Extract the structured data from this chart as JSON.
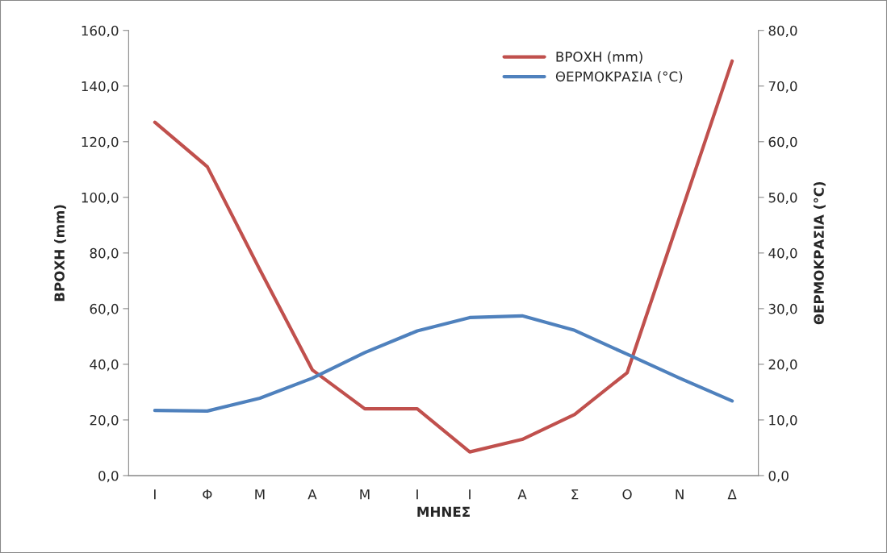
{
  "chart_data": {
    "type": "line",
    "xlabel": "ΜΗΝΕΣ",
    "ylabel": "ΒΡΟΧΗ (mm)",
    "y2label": "ΘΕΡΜΟΚΡΑΣΙΑ (°C)",
    "categories": [
      "Ι",
      "Φ",
      "Μ",
      "Α",
      "Μ",
      "Ι",
      "Ι",
      "Α",
      "Σ",
      "Ο",
      "Ν",
      "Δ"
    ],
    "series": [
      {
        "name": "ΒΡΟΧΗ (mm)",
        "color": "#c0504d",
        "values": [
          127,
          111,
          74,
          38,
          24,
          24,
          8.5,
          13,
          22,
          37,
          93,
          149
        ]
      },
      {
        "name": "ΘΕΡΜΟΚΡΑΣΙΑ (°C)",
        "color": "#4f81bd",
        "axis": "y2",
        "values": [
          11.7,
          11.6,
          13.9,
          17.5,
          22.1,
          26.0,
          28.4,
          28.7,
          26.1,
          21.8,
          17.5,
          13.4
        ]
      }
    ],
    "ylim": [
      0,
      160
    ],
    "yticks": [
      {
        "value": 0,
        "label": "0,0"
      },
      {
        "value": 20,
        "label": "20,0"
      },
      {
        "value": 40,
        "label": "40,0"
      },
      {
        "value": 60,
        "label": "60,0"
      },
      {
        "value": 80,
        "label": "80,0"
      },
      {
        "value": 100,
        "label": "100,0"
      },
      {
        "value": 120,
        "label": "120,0"
      },
      {
        "value": 140,
        "label": "140,0"
      },
      {
        "value": 160,
        "label": "160,0"
      }
    ],
    "y2lim": [
      0,
      80
    ],
    "y2ticks": [
      {
        "value": 0,
        "label": "0,0"
      },
      {
        "value": 10,
        "label": "10,0"
      },
      {
        "value": 20,
        "label": "20,0"
      },
      {
        "value": 30,
        "label": "30,0"
      },
      {
        "value": 40,
        "label": "40,0"
      },
      {
        "value": 50,
        "label": "50,0"
      },
      {
        "value": 60,
        "label": "60,0"
      },
      {
        "value": 70,
        "label": "70,0"
      },
      {
        "value": 80,
        "label": "80,0"
      }
    ],
    "legend": "top right",
    "grid": false,
    "marker": "none",
    "line_style": "solid"
  }
}
